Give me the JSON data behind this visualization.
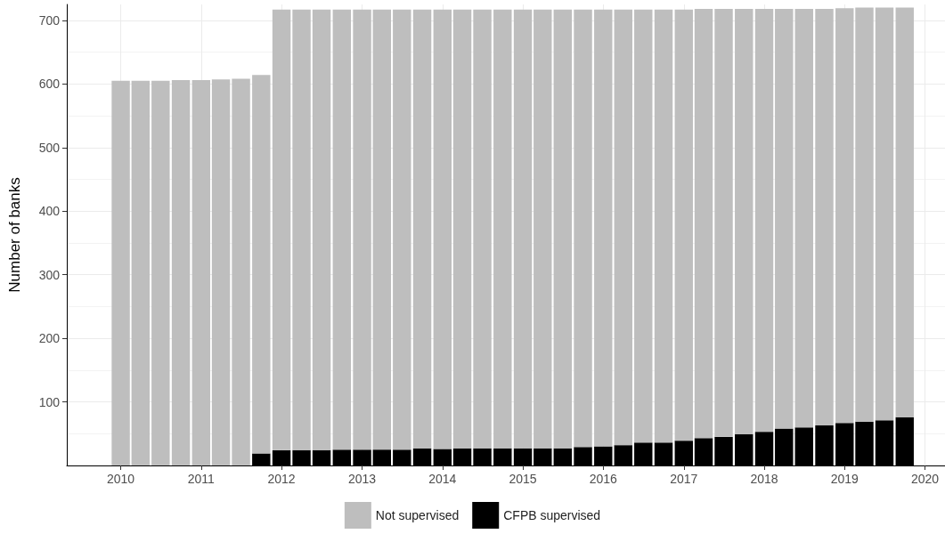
{
  "chart_data": {
    "type": "bar",
    "stacked": true,
    "ylabel": "Number of banks",
    "x": [
      "2010-01",
      "2010-04",
      "2010-07",
      "2010-10",
      "2011-01",
      "2011-04",
      "2011-07",
      "2011-10",
      "2012-01",
      "2012-04",
      "2012-07",
      "2012-10",
      "2013-01",
      "2013-04",
      "2013-07",
      "2013-10",
      "2014-01",
      "2014-04",
      "2014-07",
      "2014-10",
      "2015-01",
      "2015-04",
      "2015-07",
      "2015-10",
      "2016-01",
      "2016-04",
      "2016-07",
      "2016-10",
      "2017-01",
      "2017-04",
      "2017-07",
      "2017-10",
      "2018-01",
      "2018-04",
      "2018-07",
      "2018-10",
      "2019-01",
      "2019-04",
      "2019-07",
      "2019-10"
    ],
    "series": [
      {
        "name": "CFPB supervised",
        "color": "#000000",
        "values": [
          0,
          0,
          0,
          0,
          0,
          0,
          0,
          19,
          24,
          24,
          24,
          25,
          25,
          25,
          25,
          27,
          26,
          27,
          27,
          27,
          27,
          27,
          27,
          29,
          30,
          32,
          36,
          36,
          39,
          43,
          45,
          49,
          53,
          58,
          60,
          63,
          67,
          69,
          71,
          76
        ]
      },
      {
        "name": "Not supervised",
        "color": "#bebebe",
        "values": [
          605,
          605,
          605,
          606,
          606,
          607,
          608,
          595,
          693,
          693,
          693,
          692,
          692,
          692,
          692,
          690,
          691,
          690,
          690,
          690,
          690,
          690,
          690,
          688,
          687,
          685,
          681,
          681,
          678,
          675,
          673,
          669,
          665,
          660,
          658,
          655,
          652,
          651,
          649,
          644
        ]
      }
    ],
    "xlim": [
      "2009-05",
      "2020-04"
    ],
    "xticks": [
      "2010",
      "2011",
      "2012",
      "2013",
      "2014",
      "2015",
      "2016",
      "2017",
      "2018",
      "2019",
      "2020"
    ],
    "ylim": [
      0,
      725
    ],
    "yticks": [
      100,
      200,
      300,
      400,
      500,
      600,
      700
    ],
    "grid": true,
    "legend": "bottom"
  }
}
